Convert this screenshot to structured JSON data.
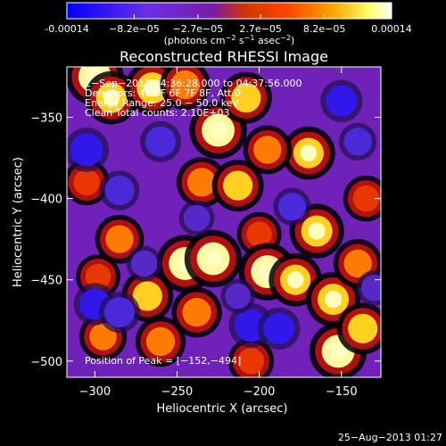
{
  "colorbar": {
    "tick_labels": [
      "-0.00014",
      "−8.2e−05",
      "−2.7e−05",
      "2.7e−05",
      "8.2e−05",
      "0.00014"
    ],
    "tick_values": [
      -0.00014,
      -8.2e-05,
      -2.7e-05,
      2.7e-05,
      8.2e-05,
      0.00014
    ],
    "range": [
      -0.00014,
      0.00014
    ],
    "colors": [
      "#0000ff",
      "#6a2fe6",
      "#7a1aa8",
      "#d23500",
      "#ff4500",
      "#ffa500",
      "#ffff66",
      "#ffffff"
    ]
  },
  "chart_data": {
    "type": "heatmap",
    "title": "Reconstructed RHESSI Image",
    "xlabel": "Heliocentric X (arcsec)",
    "ylabel": "Heliocentric Y (arcsec)",
    "xlim": [
      -317,
      -126
    ],
    "ylim": [
      -510,
      -319
    ],
    "x_ticks": [
      -300,
      -250,
      -200,
      -150
    ],
    "y_ticks": [
      -350,
      -400,
      -450,
      -500
    ],
    "annotations": [
      "2−Sep−2011 04:36:28.000 to 04:37:56.000",
      "Detectors: 4F 5F 6F 7F 8F, Att 0",
      "Energy Range: 25.0 − 50.0 keV",
      "Clean    Total counts: 2.10E+03"
    ],
    "peak_label": "Position of Peak = [−152,−494]",
    "peak": [
      -152,
      -494
    ],
    "blobs": [
      {
        "x": -300,
        "y": -325,
        "v": 1.0
      },
      {
        "x": -290,
        "y": -338,
        "v": 0.85
      },
      {
        "x": -265,
        "y": -332,
        "v": 0.9
      },
      {
        "x": -245,
        "y": -330,
        "v": 0.75
      },
      {
        "x": -225,
        "y": -358,
        "v": 1.0
      },
      {
        "x": -208,
        "y": -338,
        "v": 0.8
      },
      {
        "x": -170,
        "y": -372,
        "v": 0.85
      },
      {
        "x": -195,
        "y": -370,
        "v": 0.7
      },
      {
        "x": -305,
        "y": -390,
        "v": 0.6
      },
      {
        "x": -235,
        "y": -390,
        "v": 0.75
      },
      {
        "x": -213,
        "y": -392,
        "v": 0.8
      },
      {
        "x": -165,
        "y": -420,
        "v": 0.9
      },
      {
        "x": -135,
        "y": -400,
        "v": 0.6
      },
      {
        "x": -200,
        "y": -422,
        "v": 0.55
      },
      {
        "x": -285,
        "y": -425,
        "v": 0.7
      },
      {
        "x": -245,
        "y": -440,
        "v": 1.0
      },
      {
        "x": -228,
        "y": -437,
        "v": 1.0
      },
      {
        "x": -195,
        "y": -445,
        "v": 1.0
      },
      {
        "x": -178,
        "y": -450,
        "v": 0.85
      },
      {
        "x": -298,
        "y": -448,
        "v": 0.55
      },
      {
        "x": -268,
        "y": -460,
        "v": 0.8
      },
      {
        "x": -238,
        "y": -470,
        "v": 0.75
      },
      {
        "x": -155,
        "y": -462,
        "v": 0.9
      },
      {
        "x": -140,
        "y": -440,
        "v": 0.7
      },
      {
        "x": -295,
        "y": -485,
        "v": 0.65
      },
      {
        "x": -260,
        "y": -488,
        "v": 0.75
      },
      {
        "x": -205,
        "y": -500,
        "v": 0.6
      },
      {
        "x": -152,
        "y": -494,
        "v": 1.0
      },
      {
        "x": -137,
        "y": -480,
        "v": 0.8
      },
      {
        "x": -305,
        "y": -370,
        "v": -1.0
      },
      {
        "x": -285,
        "y": -395,
        "v": -0.8
      },
      {
        "x": -260,
        "y": -365,
        "v": -0.85
      },
      {
        "x": -300,
        "y": -465,
        "v": -0.9
      },
      {
        "x": -285,
        "y": -470,
        "v": -0.85
      },
      {
        "x": -270,
        "y": -440,
        "v": -0.6
      },
      {
        "x": -205,
        "y": -478,
        "v": -1.0
      },
      {
        "x": -188,
        "y": -480,
        "v": -0.9
      },
      {
        "x": -180,
        "y": -405,
        "v": -0.7
      },
      {
        "x": -150,
        "y": -340,
        "v": -0.9
      },
      {
        "x": -140,
        "y": -365,
        "v": -0.7
      },
      {
        "x": -238,
        "y": -412,
        "v": -0.6
      },
      {
        "x": -130,
        "y": -455,
        "v": -0.6
      },
      {
        "x": -213,
        "y": -460,
        "v": -0.55
      }
    ]
  },
  "footer": {
    "timestamp": "25−Aug−2013 01:27"
  }
}
